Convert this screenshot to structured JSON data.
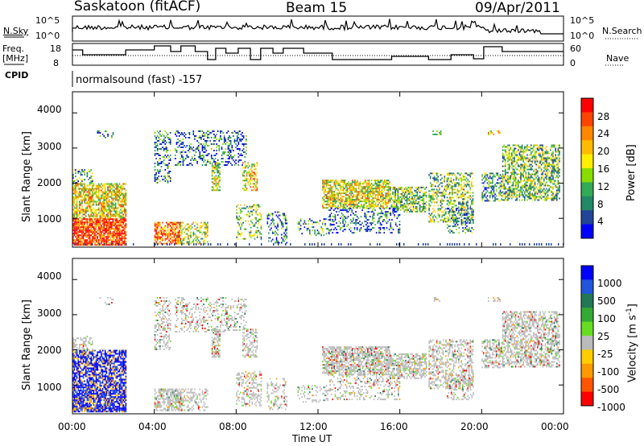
{
  "header": {
    "station": "Saskatoon (fitACF)",
    "beam": "Beam 15",
    "date": "09/Apr/2011"
  },
  "param_panels": {
    "nsky_label": "N.Sky",
    "nsky_ticks": [
      "10^5",
      "10^0"
    ],
    "nsearch_label": "N.Search",
    "nsearch_ticks": [
      "10^5",
      "10^0"
    ],
    "freq_label_1": "Freq.",
    "freq_label_2": "[MHz]",
    "freq_ticks": [
      "18",
      "8"
    ],
    "nave_label": "Nave",
    "nave_ticks": [
      "60",
      "0"
    ],
    "cpid_label": "CPID",
    "cpid_text": "normalsound (fast) -157"
  },
  "chart_data": [
    {
      "type": "heatmap",
      "name": "Power",
      "ylabel": "Slant Range [km]",
      "yticks": [
        "4000",
        "3000",
        "2000",
        "1000"
      ],
      "ytick_values": [
        4000,
        3000,
        2000,
        1000
      ],
      "ylim": [
        180,
        4600
      ],
      "xlim_hours": [
        0,
        24
      ],
      "colorbar": {
        "label": "Power [dB]",
        "ticks": [
          "28",
          "24",
          "20",
          "16",
          "12",
          "8",
          "4"
        ],
        "colors": [
          "#ff0000",
          "#ff4400",
          "#ff8800",
          "#ffbb00",
          "#ffee00",
          "#88dd00",
          "#33aa55",
          "#228866",
          "#224499",
          "#0000ff"
        ]
      }
    },
    {
      "type": "heatmap",
      "name": "Velocity",
      "ylabel": "Slant Range [km]",
      "yticks": [
        "4000",
        "3000",
        "2000",
        "1000"
      ],
      "ytick_values": [
        4000,
        3000,
        2000,
        1000
      ],
      "ylim": [
        180,
        4600
      ],
      "xlim_hours": [
        0,
        24
      ],
      "colorbar": {
        "label": "Velocity [m s^-1]",
        "ticks": [
          "1000",
          "500",
          "100",
          "25",
          "-25",
          "-100",
          "-500",
          "-1000"
        ],
        "colors": [
          "#0000ff",
          "#2255dd",
          "#227755",
          "#33aa33",
          "#66dd22",
          "#bbbbbb",
          "#ffcc00",
          "#ff9900",
          "#ff5500",
          "#ff0000"
        ]
      }
    }
  ],
  "xaxis": {
    "label": "Time UT",
    "ticks": [
      "00:00",
      "04:00",
      "08:00",
      "12:00",
      "16:00",
      "20:00",
      "00:00"
    ],
    "tick_hours": [
      0,
      4,
      8,
      12,
      16,
      20,
      24
    ]
  },
  "colors": {
    "frame": "#000000",
    "gray_scatter": "#b4b4b4"
  }
}
